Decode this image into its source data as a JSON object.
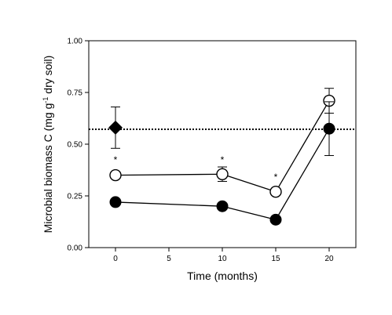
{
  "chart_data": {
    "type": "scatter",
    "title": "",
    "xlabel": "Time (months)",
    "ylabel": {
      "main": "Microbial biomass C (mg g",
      "superscript": "-1",
      "rest": " dry soil)"
    },
    "xlim": [
      -2.5,
      22.5
    ],
    "ylim": [
      0,
      1
    ],
    "xticks": [
      0,
      5,
      10,
      15,
      20
    ],
    "xtick_labels": [
      "0",
      "5",
      "10",
      "15",
      "20"
    ],
    "yticks": [
      0,
      0.25,
      0.5,
      0.75,
      1
    ],
    "ytick_labels": [
      "0.00",
      "0.25",
      "0.50",
      "0.75",
      "1.00"
    ],
    "grid": false,
    "legend": "none",
    "series": [
      {
        "marker": "open-circle",
        "color": "#000000",
        "x": [
          0,
          10,
          15,
          20
        ],
        "y": [
          0.35,
          0.355,
          0.27,
          0.71
        ],
        "err": [
          0.015,
          0.035,
          0.015,
          0.06
        ]
      },
      {
        "marker": "filled-circle",
        "color": "#000000",
        "x": [
          0,
          10,
          15,
          20
        ],
        "y": [
          0.22,
          0.2,
          0.135,
          0.575
        ],
        "err": [
          0.012,
          0.012,
          0.012,
          0.13
        ]
      },
      {
        "marker": "filled-diamond",
        "color": "#000000",
        "x": [
          0
        ],
        "y": [
          0.58
        ],
        "err": [
          0.1
        ]
      }
    ],
    "reference_line": {
      "y": 0.572,
      "style": "dotted"
    },
    "annotations": [
      {
        "text": "*",
        "x": 0,
        "y": 0.425
      },
      {
        "text": "*",
        "x": 10,
        "y": 0.425
      },
      {
        "text": "*",
        "x": 15,
        "y": 0.34
      }
    ]
  }
}
